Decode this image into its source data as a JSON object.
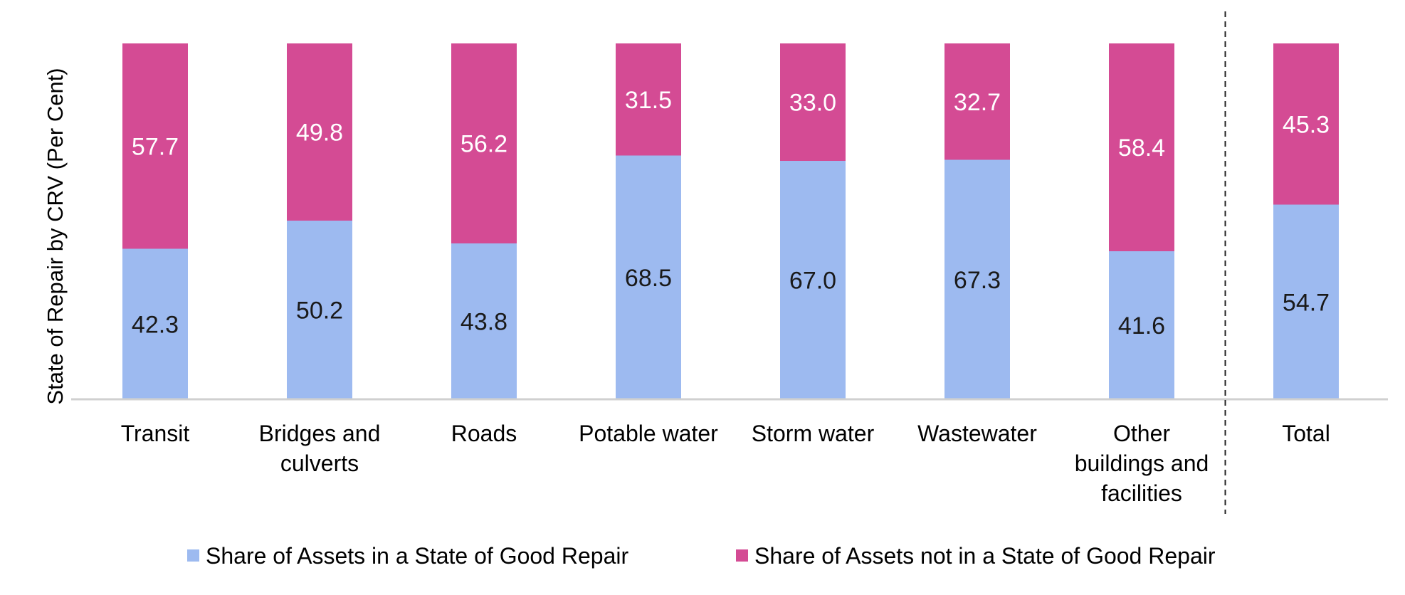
{
  "chart_data": {
    "type": "bar",
    "stacked": true,
    "ylabel": "State of Repair by CRV (Per Cent)",
    "ylim": [
      0,
      100
    ],
    "grid": false,
    "legend_position": "bottom",
    "categories": [
      [
        "Transit"
      ],
      [
        "Bridges and",
        "culverts"
      ],
      [
        "Roads"
      ],
      [
        "Potable water"
      ],
      [
        "Storm water"
      ],
      [
        "Wastewater"
      ],
      [
        "Other",
        "buildings and",
        "facilities"
      ],
      [
        "Total"
      ]
    ],
    "separator_before_category": 7,
    "series": [
      {
        "name": "Share of Assets in a State of Good Repair",
        "color": "#9DBAF0",
        "label_color": "#1a1a1a",
        "values": [
          42.3,
          50.2,
          43.8,
          68.5,
          67.0,
          67.3,
          41.6,
          54.7
        ],
        "labels": [
          "42.3",
          "50.2",
          "43.8",
          "68.5",
          "67.0",
          "67.3",
          "41.6",
          "54.7"
        ]
      },
      {
        "name": "Share of Assets not in a State of Good Repair",
        "color": "#D44B94",
        "label_color": "#ffffff",
        "values": [
          57.7,
          49.8,
          56.2,
          31.5,
          33.0,
          32.7,
          58.4,
          45.3
        ],
        "labels": [
          "57.7",
          "49.8",
          "56.2",
          "31.5",
          "33.0",
          "32.7",
          "58.4",
          "45.3"
        ]
      }
    ]
  }
}
